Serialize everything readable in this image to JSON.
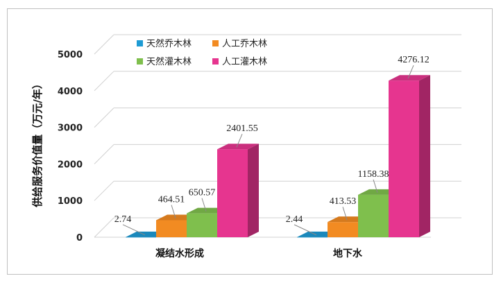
{
  "chart_data": {
    "type": "bar",
    "style": "3d-clustered-column",
    "categories": [
      "凝结水形成",
      "地下水"
    ],
    "series": [
      {
        "name": "天然乔木林",
        "values": [
          2.74,
          2.44
        ],
        "color": "#1e9bd4"
      },
      {
        "name": "人工乔木林",
        "values": [
          464.51,
          413.53
        ],
        "color": "#f28b22"
      },
      {
        "name": "天然灌木林",
        "values": [
          650.57,
          1158.38
        ],
        "color": "#7fbf4d"
      },
      {
        "name": "人工灌木林",
        "values": [
          2401.55,
          4276.12
        ],
        "color": "#e6358f"
      }
    ],
    "data_labels": [
      [
        "2.74",
        "464.51",
        "650.57",
        "2401.55"
      ],
      [
        "2.44",
        "413.53",
        "1158.38",
        "4276.12"
      ]
    ],
    "ylabel": "供给服务价值量（万元/年）",
    "xlabel": "",
    "ylim": [
      0,
      5000
    ],
    "yticks": [
      0,
      1000,
      2000,
      3000,
      4000,
      5000
    ],
    "legend_position": "top-left",
    "grid": true
  }
}
